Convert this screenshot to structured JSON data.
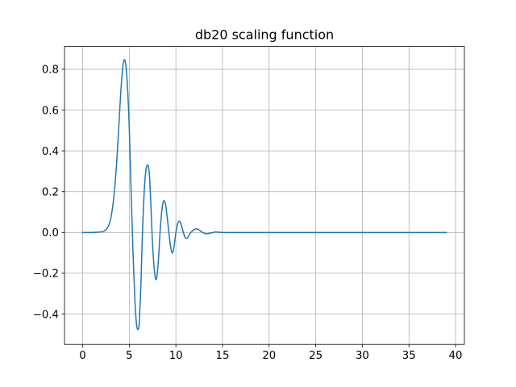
{
  "chart_data": {
    "type": "line",
    "title": "db20 scaling function",
    "xlabel": "",
    "ylabel": "",
    "xlim": [
      -1.95,
      40.95
    ],
    "ylim": [
      -0.549,
      0.912
    ],
    "grid": true,
    "x_ticks": [
      0,
      5,
      10,
      15,
      20,
      25,
      30,
      35,
      40
    ],
    "y_ticks": [
      -0.4,
      -0.2,
      0.0,
      0.2,
      0.4,
      0.6,
      0.8
    ],
    "x_tick_labels": [
      "0",
      "5",
      "10",
      "15",
      "20",
      "25",
      "30",
      "35",
      "40"
    ],
    "y_tick_labels": [
      "−0.4",
      "−0.2",
      "0.0",
      "0.2",
      "0.4",
      "0.6",
      "0.8"
    ],
    "series": [
      {
        "color": "#1f77b4",
        "x": [
          0,
          1,
          1.6,
          2.0,
          2.4,
          2.8,
          3.1,
          3.4,
          3.7,
          4.0,
          4.2,
          4.4,
          4.6,
          4.8,
          5.0,
          5.2,
          5.4,
          5.6,
          5.8,
          6.0,
          6.1,
          6.25,
          6.4,
          6.6,
          6.8,
          7.0,
          7.1,
          7.2,
          7.35,
          7.5,
          7.7,
          7.9,
          8.1,
          8.3,
          8.5,
          8.7,
          8.9,
          9.05,
          9.2,
          9.4,
          9.6,
          9.8,
          10.0,
          10.2,
          10.4,
          10.6,
          10.8,
          11.0,
          11.2,
          11.4,
          11.6,
          11.9,
          12.2,
          12.5,
          12.8,
          13.1,
          13.4,
          13.7,
          14.0,
          14.3,
          14.6,
          15.0,
          15.5,
          16.0,
          20,
          25,
          30,
          35,
          39
        ],
        "y": [
          0.0,
          0.0,
          0.001,
          0.003,
          0.01,
          0.035,
          0.09,
          0.2,
          0.38,
          0.62,
          0.76,
          0.84,
          0.83,
          0.72,
          0.51,
          0.2,
          -0.1,
          -0.33,
          -0.46,
          -0.47,
          -0.42,
          -0.25,
          -0.02,
          0.2,
          0.31,
          0.33,
          0.31,
          0.25,
          0.1,
          -0.06,
          -0.19,
          -0.23,
          -0.15,
          0.0,
          0.11,
          0.155,
          0.135,
          0.08,
          0.02,
          -0.06,
          -0.1,
          -0.07,
          0.0,
          0.045,
          0.055,
          0.035,
          0.0,
          -0.025,
          -0.028,
          -0.015,
          0.0,
          0.012,
          0.018,
          0.012,
          0.002,
          -0.005,
          -0.006,
          -0.003,
          0.0,
          0.002,
          0.001,
          0.0,
          0.0,
          0.0,
          0.0,
          0.0,
          0.0,
          0.0,
          0.0
        ]
      }
    ]
  }
}
